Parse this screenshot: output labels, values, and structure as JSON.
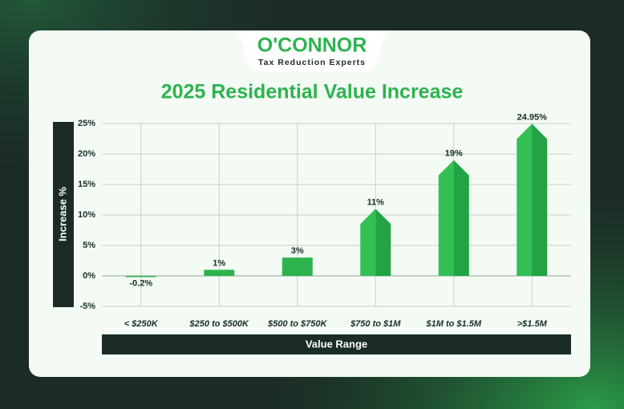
{
  "logo": {
    "name": "O'CONNOR",
    "tagline": "Tax Reduction Experts"
  },
  "chart_data": {
    "type": "bar",
    "title": "2025 Residential Value Increase",
    "x_label": "Value Range",
    "y_label": "Increase %",
    "categories": [
      "< $250K",
      "$250 to $500K",
      "$500 to $750K",
      "$750 to $1M",
      "$1M to $1.5M",
      ">$1.5M"
    ],
    "values": [
      -0.2,
      1,
      3,
      11,
      19,
      24.95
    ],
    "value_labels": [
      "-0.2%",
      "1%",
      "3%",
      "11%",
      "19%",
      "24.95%"
    ],
    "color": "#2db34e",
    "ylim": [
      -5,
      25
    ],
    "yticks": [
      {
        "value": -5,
        "label": "-5%"
      },
      {
        "value": 0,
        "label": "0%"
      },
      {
        "value": 5,
        "label": "5%"
      },
      {
        "value": 10,
        "label": "10%"
      },
      {
        "value": 15,
        "label": "15%"
      },
      {
        "value": 20,
        "label": "20%"
      },
      {
        "value": 25,
        "label": "25%"
      }
    ],
    "grid": true
  }
}
